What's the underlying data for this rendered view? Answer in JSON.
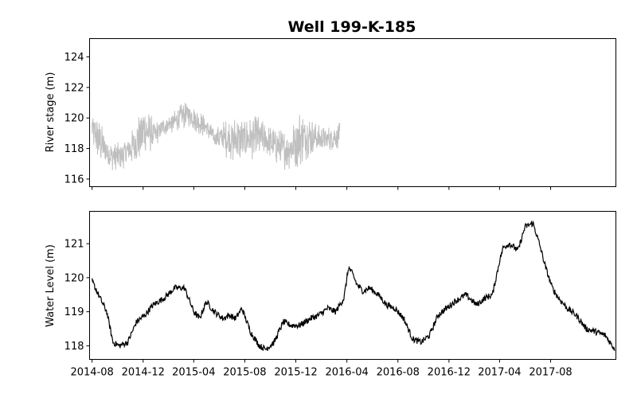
{
  "figure": {
    "title": "Well 199-K-185"
  },
  "chart_data": [
    {
      "type": "line",
      "panel": "top",
      "title": "Well 199-K-185",
      "xlabel": "",
      "ylabel": "River stage (m)",
      "ylim": [
        115.5,
        125.2
      ],
      "yticks": [
        116,
        118,
        120,
        122,
        124
      ],
      "x_ticks": [
        "2014-08",
        "2014-12",
        "2015-04",
        "2015-08",
        "2015-12",
        "2016-04",
        "2016-08",
        "2016-12",
        "2017-04",
        "2017-08"
      ],
      "x_tick_labels_visible": false,
      "color": "#bfbfbf",
      "grid": false,
      "series": [
        {
          "style": "envelope",
          "x": [
            "2014-08-01",
            "2014-08-20",
            "2014-09-10",
            "2014-10-01",
            "2014-10-20",
            "2014-11-10",
            "2014-12-01",
            "2014-12-15",
            "2015-01-01",
            "2015-01-20",
            "2015-02-10",
            "2015-03-01",
            "2015-03-20",
            "2015-04-10",
            "2015-05-01",
            "2015-05-20",
            "2015-06-10",
            "2015-07-01",
            "2015-07-20",
            "2015-08-10",
            "2015-09-01",
            "2015-09-20",
            "2015-10-10",
            "2015-11-01",
            "2015-11-20",
            "2015-12-10",
            "2016-01-01",
            "2016-01-20",
            "2016-02-10",
            "2016-03-01",
            "2016-03-15"
          ],
          "low": [
            118.0,
            117.0,
            116.5,
            116.6,
            116.7,
            117.0,
            117.3,
            117.6,
            118.2,
            118.8,
            119.0,
            119.2,
            119.4,
            119.0,
            118.6,
            118.2,
            117.6,
            117.0,
            117.1,
            117.3,
            117.2,
            117.6,
            117.0,
            116.6,
            116.6,
            116.8,
            117.4,
            117.8,
            117.8,
            117.9,
            118.0
          ],
          "high": [
            120.6,
            119.8,
            118.6,
            118.4,
            118.8,
            119.4,
            121.1,
            120.4,
            119.8,
            120.1,
            120.4,
            120.9,
            121.1,
            120.6,
            120.2,
            119.2,
            119.8,
            120.2,
            120.1,
            120.0,
            120.2,
            119.6,
            119.4,
            119.2,
            119.6,
            120.6,
            120.2,
            119.6,
            119.4,
            119.6,
            119.7
          ]
        }
      ]
    },
    {
      "type": "line",
      "panel": "bottom",
      "xlabel": "",
      "ylabel": "Water Level (m)",
      "ylim": [
        117.6,
        121.95
      ],
      "yticks": [
        118,
        119,
        120,
        121
      ],
      "x_ticks": [
        "2014-08",
        "2014-12",
        "2015-04",
        "2015-08",
        "2015-12",
        "2016-04",
        "2016-08",
        "2016-12",
        "2017-04",
        "2017-08"
      ],
      "x_tick_labels_visible": true,
      "color": "#000000",
      "grid": false,
      "series": [
        {
          "x": [
            "2014-08-01",
            "2014-08-20",
            "2014-09-05",
            "2014-09-20",
            "2014-10-05",
            "2014-10-25",
            "2014-11-15",
            "2014-12-05",
            "2014-12-25",
            "2015-01-20",
            "2015-02-15",
            "2015-03-10",
            "2015-04-01",
            "2015-04-15",
            "2015-05-01",
            "2015-05-20",
            "2015-06-10",
            "2015-06-25",
            "2015-07-10",
            "2015-07-25",
            "2015-08-15",
            "2015-09-05",
            "2015-09-20",
            "2015-10-10",
            "2015-11-01",
            "2015-11-20",
            "2015-12-10",
            "2016-01-05",
            "2016-01-25",
            "2016-02-15",
            "2016-03-05",
            "2016-03-25",
            "2016-04-05",
            "2016-04-15",
            "2016-04-25",
            "2016-05-10",
            "2016-05-25",
            "2016-06-15",
            "2016-07-05",
            "2016-07-25",
            "2016-08-15",
            "2016-09-05",
            "2016-09-25",
            "2016-10-15",
            "2016-11-05",
            "2016-11-25",
            "2016-12-15",
            "2017-01-10",
            "2017-02-05",
            "2017-02-25",
            "2017-03-15",
            "2017-04-01",
            "2017-04-10",
            "2017-04-25",
            "2017-05-15",
            "2017-06-01",
            "2017-06-20",
            "2017-07-05",
            "2017-07-20",
            "2017-08-05",
            "2017-08-20",
            "2017-09-10",
            "2017-10-01",
            "2017-10-25",
            "2017-11-20",
            "2017-12-10",
            "2018-01-01"
          ],
          "y": [
            119.9,
            119.4,
            119.0,
            118.1,
            118.0,
            118.1,
            118.7,
            118.9,
            119.2,
            119.4,
            119.7,
            119.7,
            119.0,
            118.8,
            119.3,
            119.0,
            118.8,
            118.9,
            118.8,
            119.1,
            118.4,
            118.0,
            117.9,
            118.1,
            118.7,
            118.6,
            118.6,
            118.8,
            118.9,
            119.1,
            119.0,
            119.4,
            120.3,
            120.1,
            119.8,
            119.6,
            119.7,
            119.5,
            119.2,
            119.1,
            118.8,
            118.2,
            118.1,
            118.3,
            118.9,
            119.1,
            119.3,
            119.5,
            119.2,
            119.4,
            119.5,
            120.5,
            120.9,
            121.0,
            120.8,
            121.5,
            121.6,
            121.0,
            120.3,
            119.7,
            119.4,
            119.1,
            118.9,
            118.5,
            118.4,
            118.3,
            117.9
          ]
        }
      ]
    }
  ]
}
